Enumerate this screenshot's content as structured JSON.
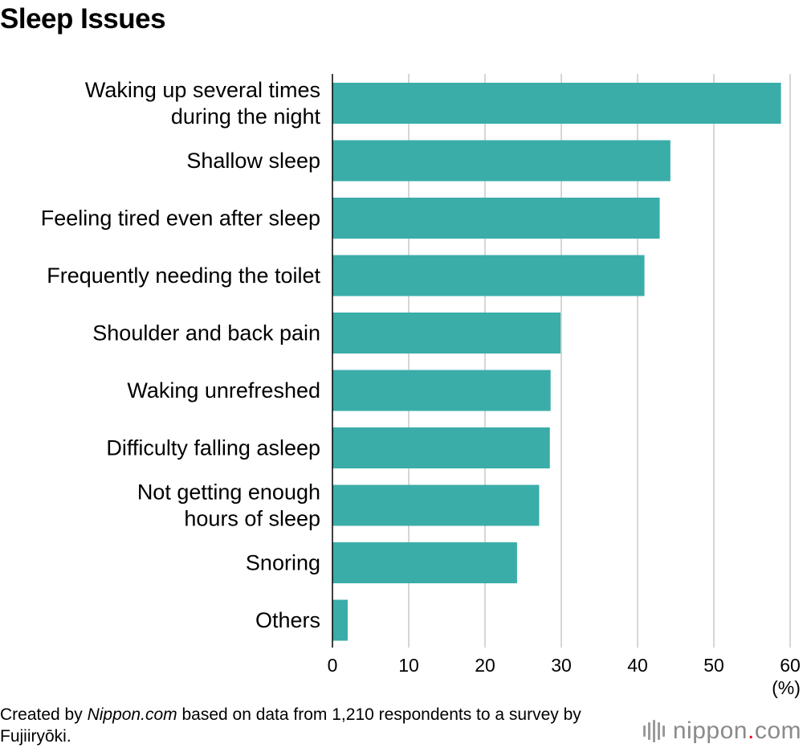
{
  "title": "Sleep Issues",
  "chart_data": {
    "type": "bar",
    "orientation": "horizontal",
    "title": "Sleep Issues",
    "categories": [
      [
        "Waking up several times",
        "during the night"
      ],
      [
        "Shallow sleep"
      ],
      [
        "Feeling tired even after sleep"
      ],
      [
        "Frequently needing the toilet"
      ],
      [
        "Shoulder and back pain"
      ],
      [
        "Waking unrefreshed"
      ],
      [
        "Difficulty falling asleep"
      ],
      [
        "Not getting enough",
        "hours of sleep"
      ],
      [
        "Snoring"
      ],
      [
        "Others"
      ]
    ],
    "values": [
      58.8,
      44.3,
      42.9,
      40.9,
      29.9,
      28.6,
      28.5,
      27.1,
      24.2,
      2.0
    ],
    "xticks": [
      0,
      10,
      20,
      30,
      40,
      50,
      60
    ],
    "xlim": [
      0,
      60
    ],
    "unit_label": "(%)",
    "grid": true,
    "bar_color": "#3aada9"
  },
  "footer": {
    "prefix": "Created by ",
    "source": "Nippon.com",
    "suffix": " based on data from 1,210 respondents to a survey by Fujiiryōki."
  },
  "logo": {
    "name": "nippon",
    "dot": ".",
    "tld": "com"
  }
}
